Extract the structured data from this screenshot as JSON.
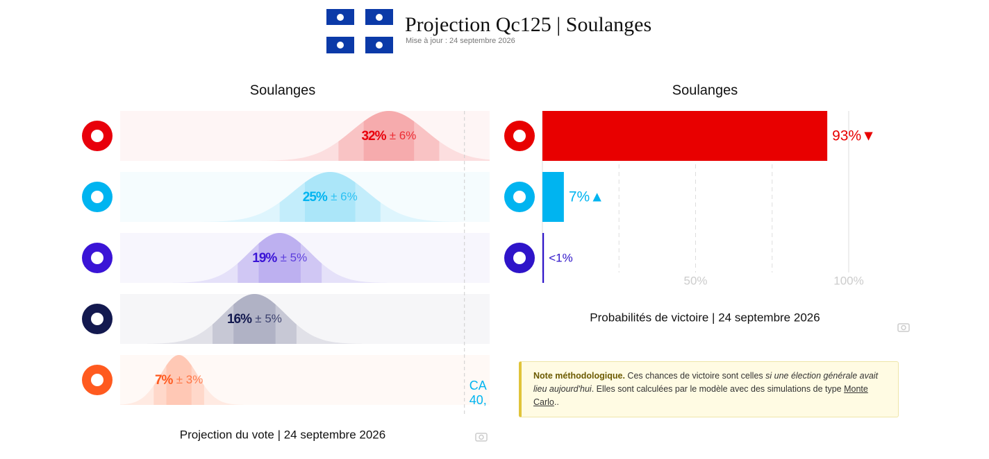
{
  "header": {
    "title": "Projection Qc125 | Soulanges",
    "updated": "Mise à jour : 24 septembre 2026"
  },
  "chart_data": [
    {
      "type": "distribution",
      "title": "Soulanges",
      "caption": "Projection du vote | 24 septembre 2026",
      "values": [
        32,
        25,
        19,
        16,
        7
      ],
      "value_labels": [
        "32%",
        "25%",
        "19%",
        "16%",
        "7%"
      ],
      "errors": [
        6,
        6,
        5,
        5,
        3
      ],
      "error_labels": [
        "± 6%",
        "± 6%",
        "± 5%",
        "± 5%",
        "± 3%"
      ],
      "colors": [
        "#e8000b",
        "#00b4f0",
        "#3a14d6",
        "#13194f",
        "#ff5a1f"
      ],
      "xlim": [
        0,
        44
      ],
      "reference_line": 41,
      "annotation": [
        "CA",
        "40,"
      ]
    },
    {
      "type": "bar",
      "orientation": "horizontal",
      "title": "Soulanges",
      "caption": "Probabilités de victoire | 24 septembre 2026",
      "values": [
        93,
        7,
        0.5
      ],
      "value_labels": [
        "93%▼",
        "7%▲",
        "<1%"
      ],
      "colors": [
        "#e80000",
        "#00b4f0",
        "#2e14c9"
      ],
      "xlim": [
        0,
        100
      ],
      "xticks": [
        {
          "value": 50,
          "label": "50%"
        },
        {
          "value": 100,
          "label": "100%"
        }
      ],
      "minor_gridlines": [
        25,
        75
      ],
      "grid": true
    }
  ],
  "note": {
    "label": "Note méthodologique.",
    "text1": " Ces chances de victoire sont celles ",
    "italic": "si une élection générale avait lieu aujourd'hui",
    "text2": ". Elles sont calculées par le modèle avec des simulations de type ",
    "link": "Monte Carlo",
    "end": ".."
  }
}
